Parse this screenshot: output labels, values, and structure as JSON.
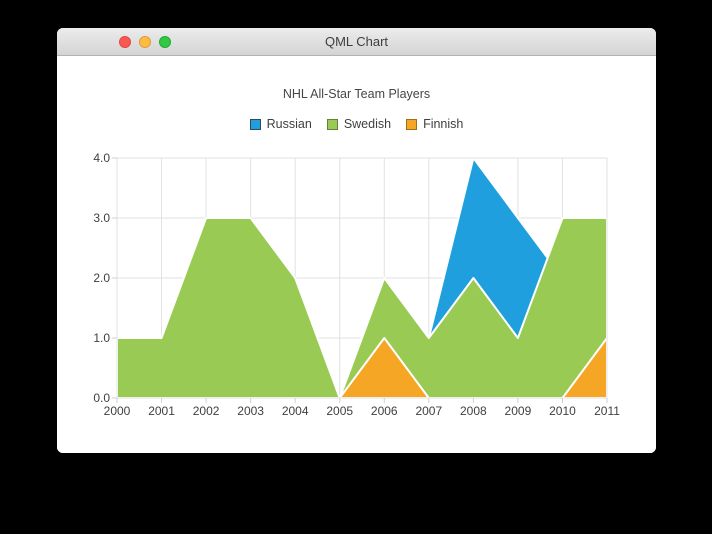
{
  "window": {
    "title": "QML Chart",
    "controls": [
      {
        "name": "close",
        "color": "#fc5753",
        "border": "#df4744"
      },
      {
        "name": "minimize",
        "color": "#fdbc40",
        "border": "#de9c38"
      },
      {
        "name": "zoom",
        "color": "#33c748",
        "border": "#1dad2b"
      }
    ]
  },
  "chart_data": {
    "type": "area",
    "title": "NHL All-Star Team Players",
    "x": [
      2000,
      2001,
      2002,
      2003,
      2004,
      2005,
      2006,
      2007,
      2008,
      2009,
      2010,
      2011
    ],
    "series": [
      {
        "name": "Russian",
        "color": "#209fdf",
        "marker_border": "#35485a",
        "values": [
          1,
          1,
          1,
          1,
          1,
          0,
          1,
          1,
          4,
          3,
          2,
          1
        ]
      },
      {
        "name": "Swedish",
        "color": "#99ca53",
        "marker_border": "#667f3a",
        "values": [
          1,
          1,
          3,
          3,
          2,
          0,
          2,
          1,
          2,
          1,
          3,
          3
        ]
      },
      {
        "name": "Finnish",
        "color": "#f6a625",
        "marker_border": "#a06f1a",
        "values": [
          0,
          0,
          0,
          0,
          0,
          0,
          1,
          0,
          0,
          0,
          0,
          1
        ]
      }
    ],
    "xlim": [
      2000,
      2011
    ],
    "ylim": [
      0,
      4
    ],
    "x_tick_labels": [
      "2000",
      "2001",
      "2002",
      "2003",
      "2004",
      "2005",
      "2006",
      "2007",
      "2008",
      "2009",
      "2010",
      "2011"
    ],
    "y_tick_labels": [
      "0.0",
      "1.0",
      "2.0",
      "3.0",
      "4.0"
    ],
    "grid": true,
    "legend_position": "top",
    "area_outline_color": "#ffffff",
    "grid_color": "#e2e2e2",
    "tick_color": "#cfcfcf",
    "label_color": "#404042"
  }
}
